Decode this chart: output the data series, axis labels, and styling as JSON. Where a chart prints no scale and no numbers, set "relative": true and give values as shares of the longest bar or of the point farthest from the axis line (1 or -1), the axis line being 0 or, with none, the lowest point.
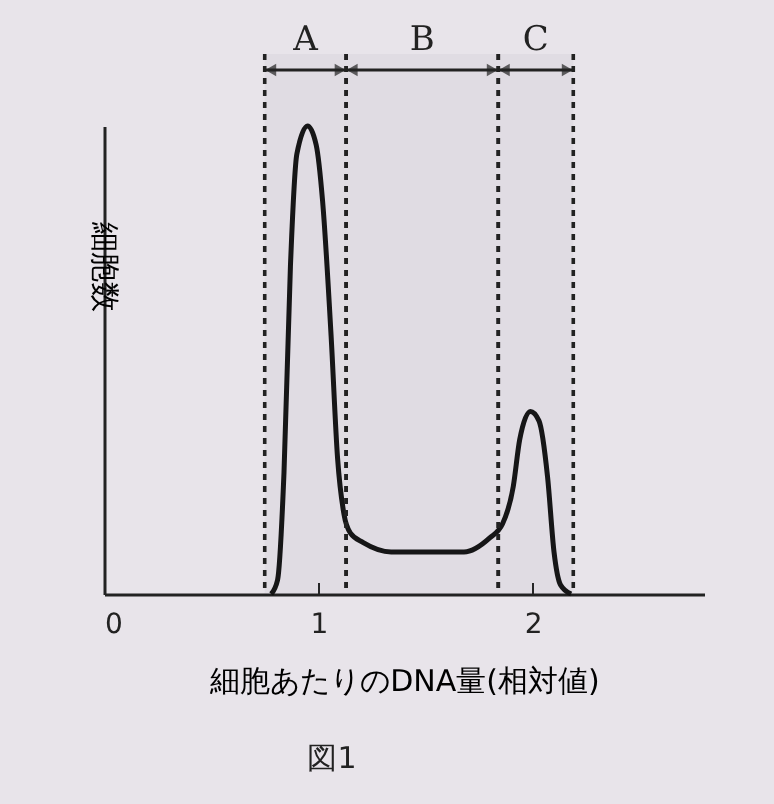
{
  "chart_data": {
    "type": "line",
    "relative": true,
    "xlabel": "細胞あたりのDNA量(相対値)",
    "ylabel": "細胞数",
    "xlim": [
      0,
      2.8
    ],
    "xticks": [
      0,
      1,
      2
    ],
    "annotations": [
      "図1"
    ],
    "bands": [
      {
        "axis": "x",
        "from": 0.75,
        "to": 1.13,
        "label": "A"
      },
      {
        "axis": "x",
        "from": 1.13,
        "to": 1.84,
        "label": "B"
      },
      {
        "axis": "x",
        "from": 1.84,
        "to": 2.19,
        "label": "C"
      }
    ],
    "series": [
      {
        "color": "#111111",
        "x": [
          0.78,
          0.81,
          0.84,
          0.87,
          0.9,
          0.95,
          0.99,
          1.02,
          1.06,
          1.09,
          1.12,
          1.15,
          1.21,
          1.34,
          1.52,
          1.68,
          1.8,
          1.86,
          1.91,
          1.94,
          1.99,
          2.03,
          2.07,
          2.1,
          2.13,
          2.18
        ],
        "values": [
          0,
          0.03,
          0.26,
          0.7,
          0.94,
          1,
          0.96,
          0.84,
          0.55,
          0.29,
          0.17,
          0.13,
          0.11,
          0.09,
          0.09,
          0.09,
          0.12,
          0.15,
          0.23,
          0.33,
          0.39,
          0.37,
          0.25,
          0.09,
          0.02,
          0
        ]
      }
    ],
    "marker": "none",
    "line_style": "solid"
  }
}
